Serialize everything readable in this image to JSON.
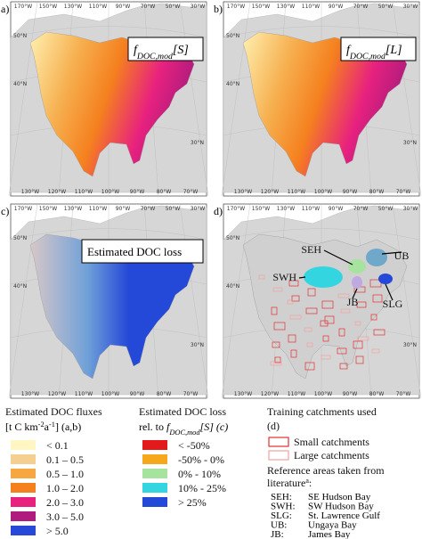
{
  "panels": [
    {
      "label": "a)",
      "title": [
        {
          "text": "f",
          "style": "italic"
        },
        {
          "text": "DOC,mod",
          "style": "sub"
        },
        {
          "text": "[S]",
          "style": "italic"
        }
      ],
      "map": "flux"
    },
    {
      "label": "b)",
      "title": [
        {
          "text": "f",
          "style": "italic"
        },
        {
          "text": "DOC,mod",
          "style": "sub"
        },
        {
          "text": "[L]",
          "style": "italic"
        }
      ],
      "map": "flux"
    },
    {
      "label": "c)",
      "title": [
        {
          "text": "Estimated DOC loss",
          "style": "normal"
        }
      ],
      "map": "loss"
    },
    {
      "label": "d)",
      "map": "train",
      "annotations": [
        "SEH",
        "UB",
        "SWH",
        "JB",
        "SLG"
      ]
    }
  ],
  "graticule": {
    "top": [
      "170°W",
      "150°W",
      "130°W",
      "110°W",
      "90°W",
      "70°W",
      "50°W",
      "30°W"
    ],
    "lat": [
      "50°N",
      "40°N",
      "30°N"
    ],
    "bottom": [
      "130°W",
      "120°W",
      "110°W",
      "100°W",
      "90°W",
      "80°W",
      "70°W"
    ]
  },
  "legend": {
    "fluxes": {
      "title": "Estimated DOC fluxes",
      "unit": [
        {
          "text": "[t C km",
          "style": "normal"
        },
        {
          "text": "-2",
          "style": "sup"
        },
        {
          "text": "a",
          "style": "normal"
        },
        {
          "text": "-1",
          "style": "sup"
        },
        {
          "text": "] (a,b)",
          "style": "normal"
        }
      ],
      "items": [
        {
          "label": "< 0.1",
          "color": "#fff6c2"
        },
        {
          "label": "0.1 – 0.5",
          "color": "#f5cf8f"
        },
        {
          "label": "0.5 – 1.0",
          "color": "#f7a740"
        },
        {
          "label": "1.0 – 2.0",
          "color": "#f5801e"
        },
        {
          "label": "2.0 – 3.0",
          "color": "#e8217f"
        },
        {
          "label": "3.0 – 5.0",
          "color": "#b01c7d"
        },
        {
          "label": "> 5.0",
          "color": "#2848d8"
        }
      ]
    },
    "loss": {
      "title": "Estimated DOC loss",
      "subtitle": [
        {
          "text": "rel. to ",
          "style": "normal"
        },
        {
          "text": "f",
          "style": "italic"
        },
        {
          "text": "DOC,mod",
          "style": "sub"
        },
        {
          "text": "[S] (c)",
          "style": "italic"
        }
      ],
      "items": [
        {
          "label": "< -50%",
          "color": "#e31a1c"
        },
        {
          "label": "-50% - 0%",
          "color": "#f5a81c"
        },
        {
          "label": "0% - 10%",
          "color": "#a5e39f"
        },
        {
          "label": "10% - 25%",
          "color": "#33d5e0"
        },
        {
          "label": "> 25%",
          "color": "#2448d8"
        }
      ]
    },
    "training": {
      "title": "Training catchments used",
      "subtitle": "(d)",
      "items": [
        {
          "label": "Small catchments",
          "color": "#e03030"
        },
        {
          "label": "Large catchments",
          "color": "#f3a0a0"
        }
      ]
    },
    "reference": {
      "title": "Reference areas taken from",
      "title2": "literature",
      "sup": "a",
      "colon": ":",
      "rows": [
        [
          "SEH:",
          "SE Hudson Bay"
        ],
        [
          "SWH:",
          "SW Hudson Bay"
        ],
        [
          "SLG:",
          "St. Lawrence Gulf"
        ],
        [
          "UB:",
          "Ungaya Bay"
        ],
        [
          "JB:",
          "James Bay"
        ]
      ]
    }
  }
}
